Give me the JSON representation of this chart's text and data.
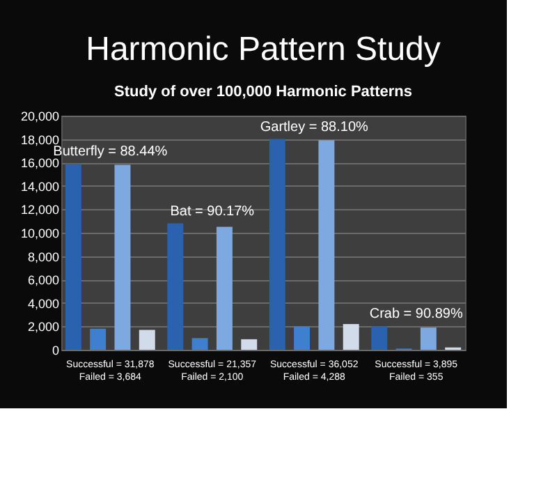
{
  "chart_data": {
    "type": "bar",
    "title": "Harmonic Pattern Study",
    "subtitle": "Study of over 100,000 Harmonic Patterns",
    "categories": [
      "Successful = 31,878\nFailed = 3,684",
      "Successful = 21,357\nFailed = 2,100",
      "Successful = 36,052\nFailed = 4,288",
      "Successful = 3,895\nFailed = 355"
    ],
    "series": [
      {
        "color": "#2b62b0",
        "values": [
          15900,
          10800,
          18000,
          2000
        ]
      },
      {
        "color": "#3f7fcf",
        "values": [
          1800,
          1000,
          2000,
          100
        ]
      },
      {
        "color": "#7ea8e0",
        "values": [
          15800,
          10500,
          17900,
          1900
        ]
      },
      {
        "color": "#d2dbea",
        "values": [
          1700,
          900,
          2200,
          200
        ]
      }
    ],
    "annotations": [
      "Butterfly = 88.44%",
      "Bat = 90.17%",
      "Gartley = 88.10%",
      "Crab = 90.89%"
    ],
    "ylim": [
      0,
      20000
    ],
    "yticks": [
      {
        "value": 0,
        "label": "0"
      },
      {
        "value": 2000,
        "label": "2,000"
      },
      {
        "value": 4000,
        "label": "4,000"
      },
      {
        "value": 6000,
        "label": "6,000"
      },
      {
        "value": 8000,
        "label": "8,000"
      },
      {
        "value": 10000,
        "label": "10,000"
      },
      {
        "value": 12000,
        "label": "12,000"
      },
      {
        "value": 14000,
        "label": "14,000"
      },
      {
        "value": 16000,
        "label": "16,000"
      },
      {
        "value": 18000,
        "label": "18,000"
      },
      {
        "value": 20000,
        "label": "20,000"
      }
    ],
    "grid": "y",
    "legend": false
  }
}
